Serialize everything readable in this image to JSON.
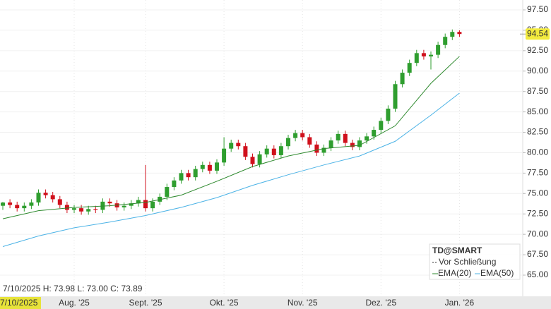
{
  "chart_data": {
    "type": "candlestick",
    "categories": [
      null,
      null,
      null,
      null,
      null,
      null,
      null,
      null,
      null,
      null,
      "Aug. '25",
      null,
      null,
      null,
      null,
      null,
      null,
      null,
      null,
      null,
      "Sept. '25",
      null,
      null,
      null,
      null,
      null,
      null,
      null,
      null,
      null,
      null,
      "Okt. '25",
      null,
      null,
      null,
      null,
      null,
      null,
      null,
      null,
      null,
      null,
      "Nov. '25",
      null,
      null,
      null,
      null,
      null,
      null,
      null,
      null,
      null,
      null,
      "Dez. '25",
      null,
      null,
      null,
      null,
      null,
      null,
      null,
      null,
      null,
      null,
      "Jan. '26"
    ],
    "open": [
      73.5,
      73.9,
      73.6,
      73.2,
      73.5,
      73.9,
      75.1,
      74.8,
      74.3,
      73.6,
      73.0,
      73.2,
      72.8,
      73.1,
      73.0,
      74.0,
      73.8,
      73.3,
      73.5,
      73.8,
      74.2,
      73.2,
      74.0,
      74.6,
      75.8,
      76.6,
      77.5,
      77.0,
      78.0,
      78.5,
      77.8,
      78.8,
      80.5,
      81.2,
      80.8,
      79.5,
      78.6,
      79.8,
      80.5,
      79.7,
      80.8,
      81.8,
      82.4,
      81.9,
      81.0,
      80.0,
      80.6,
      81.5,
      82.3,
      81.2,
      80.7,
      81.5,
      82.0,
      82.8,
      83.9,
      85.4,
      88.4,
      89.8,
      91.0,
      92.2,
      91.8,
      92.0,
      93.2,
      94.2,
      94.8
    ],
    "high": [
      73.98,
      74.3,
      74.0,
      73.9,
      74.3,
      75.5,
      75.5,
      75.2,
      74.7,
      74.0,
      73.6,
      73.6,
      73.5,
      73.5,
      74.4,
      74.4,
      74.2,
      73.9,
      74.2,
      74.6,
      78.5,
      74.4,
      75.0,
      76.2,
      77.0,
      77.9,
      77.9,
      78.4,
      78.9,
      78.9,
      79.2,
      81.9,
      81.6,
      81.6,
      81.2,
      79.9,
      80.2,
      80.9,
      80.9,
      81.2,
      82.2,
      82.8,
      82.8,
      82.3,
      81.4,
      81.0,
      81.9,
      82.7,
      82.7,
      81.6,
      81.9,
      82.4,
      83.2,
      84.3,
      85.8,
      88.8,
      90.2,
      91.4,
      92.6,
      92.6,
      92.4,
      93.6,
      94.6,
      95.1,
      95.0
    ],
    "low": [
      73.0,
      73.2,
      72.8,
      72.8,
      73.1,
      73.5,
      74.4,
      73.9,
      73.2,
      72.6,
      72.6,
      72.4,
      72.4,
      72.6,
      72.6,
      73.4,
      72.9,
      72.9,
      73.1,
      73.4,
      72.8,
      72.8,
      73.6,
      74.2,
      75.4,
      76.2,
      76.6,
      76.6,
      77.6,
      77.4,
      77.4,
      78.4,
      80.1,
      80.4,
      79.1,
      78.2,
      78.2,
      79.4,
      79.3,
      79.3,
      80.4,
      81.4,
      81.5,
      80.6,
      79.6,
      79.6,
      80.2,
      81.1,
      80.8,
      80.3,
      80.3,
      81.1,
      81.6,
      82.4,
      83.5,
      85.0,
      88.0,
      89.4,
      90.6,
      91.4,
      90.2,
      91.6,
      92.8,
      93.8,
      94.2
    ],
    "close": [
      73.89,
      73.6,
      73.2,
      73.5,
      73.9,
      75.1,
      74.8,
      74.3,
      73.6,
      73.0,
      73.2,
      72.8,
      73.1,
      73.0,
      74.0,
      73.8,
      73.3,
      73.5,
      73.8,
      74.2,
      73.2,
      74.0,
      74.6,
      75.8,
      76.6,
      77.5,
      77.0,
      78.0,
      78.5,
      77.8,
      78.8,
      80.5,
      81.2,
      80.8,
      79.5,
      78.6,
      79.8,
      80.5,
      79.7,
      80.8,
      81.8,
      82.4,
      81.9,
      81.0,
      80.0,
      80.6,
      81.5,
      82.3,
      81.2,
      80.7,
      81.5,
      82.0,
      82.8,
      83.9,
      85.4,
      88.4,
      89.8,
      91.0,
      92.2,
      91.8,
      92.0,
      93.2,
      94.2,
      94.8,
      94.54
    ],
    "up_color": "#2f9e2f",
    "down_color": "#d0101c",
    "lines": [
      {
        "name": "EMA(20)",
        "color": "#2f8a2f",
        "x": [
          0,
          5,
          10,
          15,
          20,
          25,
          30,
          35,
          40,
          45,
          50,
          55,
          60,
          64
        ],
        "values": [
          71.9,
          72.9,
          73.3,
          73.5,
          73.9,
          74.8,
          76.5,
          78.3,
          79.6,
          80.5,
          80.9,
          83.3,
          88.5,
          91.8
        ]
      },
      {
        "name": "EMA(50)",
        "color": "#4cb3e6",
        "x": [
          0,
          5,
          10,
          15,
          20,
          25,
          30,
          35,
          40,
          45,
          50,
          55,
          60,
          64
        ],
        "values": [
          68.5,
          69.8,
          70.8,
          71.5,
          72.3,
          73.3,
          74.5,
          76.0,
          77.3,
          78.5,
          79.6,
          81.4,
          84.6,
          87.3
        ]
      }
    ],
    "legend_title": "TD@SMART",
    "legend_note": "Vor Schließung",
    "last_price": 94.54,
    "cursor_label": "7/10/2025",
    "info": "7/10/2025 H: 73.98 L: 73.00 C: 73.89",
    "ylim": [
      65,
      97.5
    ],
    "yticks": [
      {
        "value": 65,
        "label": "65.00"
      },
      {
        "value": 67.5,
        "label": "67.50"
      },
      {
        "value": 70,
        "label": "70.00"
      },
      {
        "value": 72.5,
        "label": "72.50"
      },
      {
        "value": 75,
        "label": "75.00"
      },
      {
        "value": 77.5,
        "label": "77.50"
      },
      {
        "value": 80,
        "label": "80.00"
      },
      {
        "value": 82.5,
        "label": "82.50"
      },
      {
        "value": 85,
        "label": "85.00"
      },
      {
        "value": 87.5,
        "label": "87.50"
      },
      {
        "value": 90,
        "label": "90.00"
      },
      {
        "value": 92.5,
        "label": "92.50"
      },
      {
        "value": 95,
        "label": "95.00"
      },
      {
        "value": 97.5,
        "label": "97.50"
      }
    ],
    "grid": true
  }
}
